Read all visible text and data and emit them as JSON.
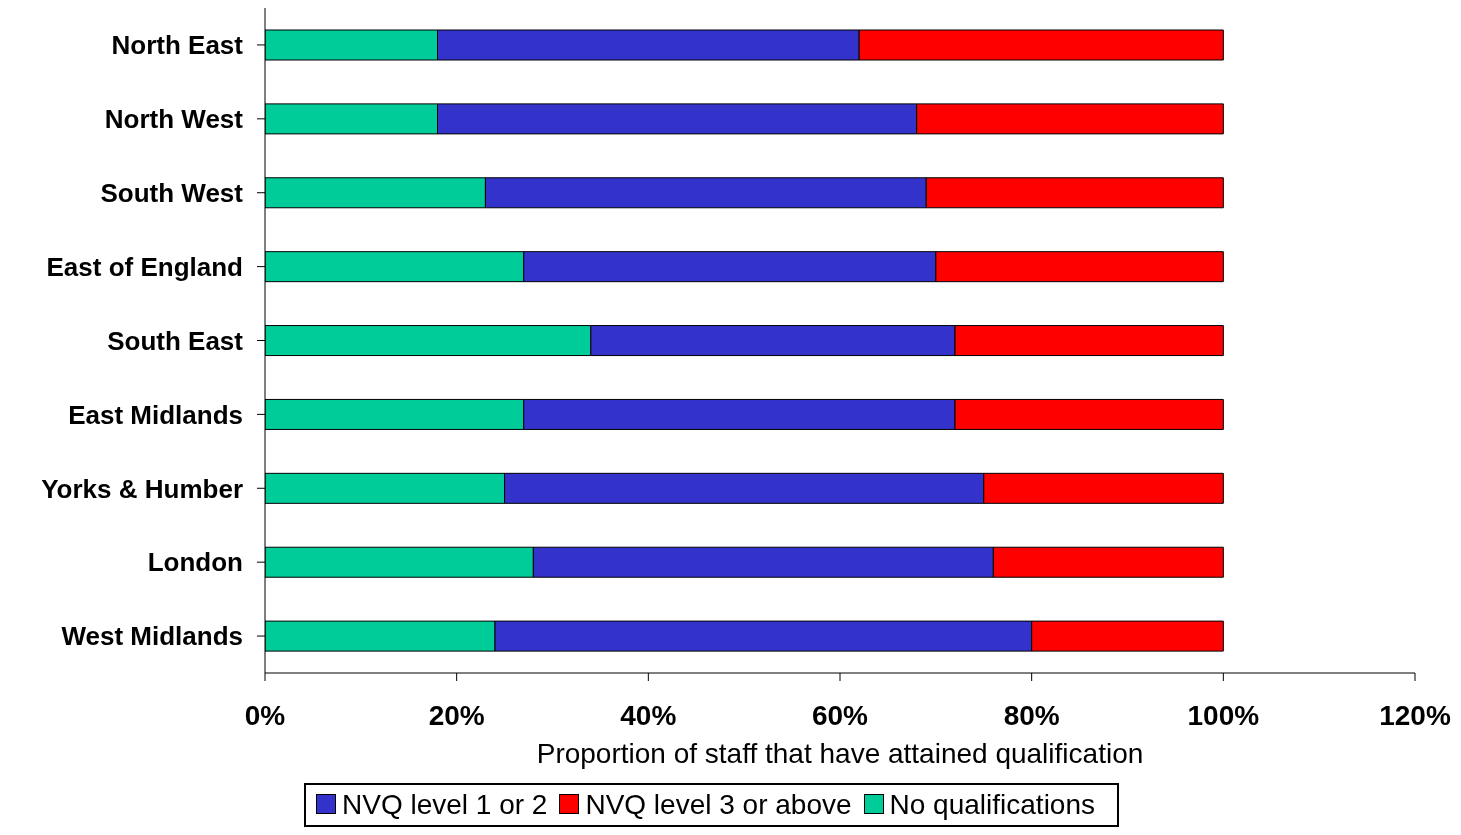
{
  "chart_data": {
    "type": "bar",
    "orientation": "horizontal",
    "stacked": true,
    "categories": [
      "North East",
      "North West",
      "South West",
      "East of England",
      "South East",
      "East Midlands",
      "Yorks & Humber",
      "London",
      "West Midlands"
    ],
    "series": [
      {
        "name": "No qualifications",
        "color": "#00cc99",
        "values": [
          18,
          18,
          23,
          27,
          34,
          27,
          25,
          28,
          24
        ]
      },
      {
        "name": "NVQ level 1 or 2",
        "color": "#3333cc",
        "values": [
          44,
          50,
          46,
          43,
          38,
          45,
          50,
          48,
          56
        ]
      },
      {
        "name": "NVQ level 3 or above",
        "color": "#ff0000",
        "values": [
          38,
          32,
          31,
          30,
          28,
          28,
          25,
          24,
          20
        ]
      }
    ],
    "xlim": [
      0,
      120
    ],
    "xticks": [
      {
        "value": 0,
        "label": "0%"
      },
      {
        "value": 20,
        "label": "20%"
      },
      {
        "value": 40,
        "label": "40%"
      },
      {
        "value": 60,
        "label": "60%"
      },
      {
        "value": 80,
        "label": "80%"
      },
      {
        "value": 100,
        "label": "100%"
      },
      {
        "value": 120,
        "label": "120%"
      }
    ],
    "xlabel": "Proportion of staff that have attained qualification",
    "legend": "bottom"
  }
}
